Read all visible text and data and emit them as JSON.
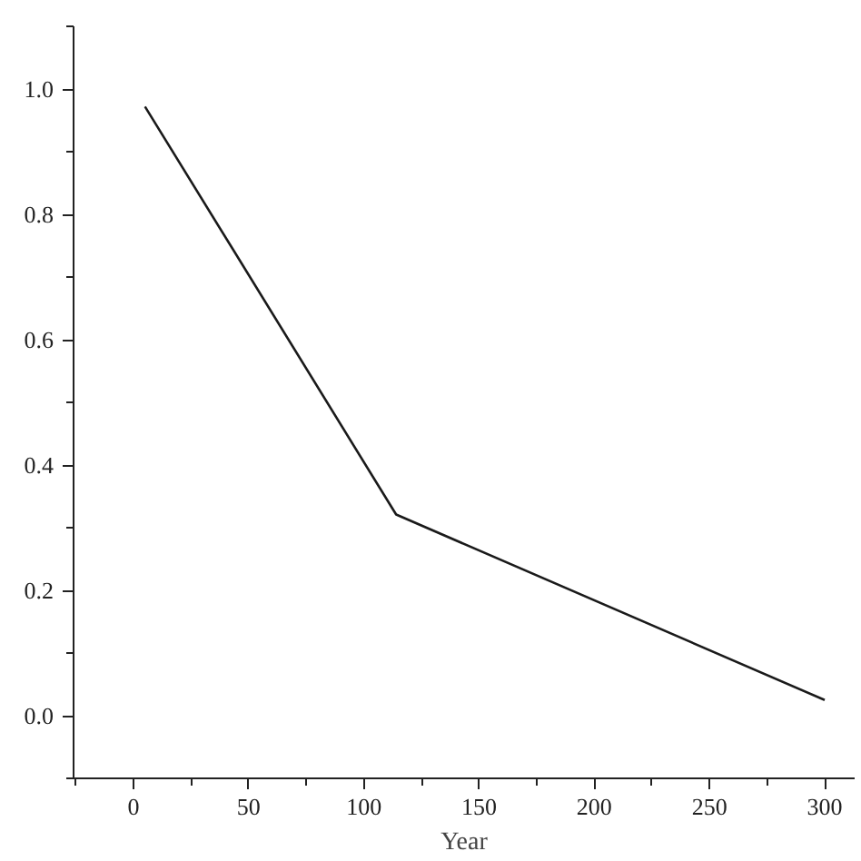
{
  "chart_data": {
    "type": "line",
    "xlabel": "Year",
    "x": [
      5,
      114,
      300
    ],
    "series": [
      {
        "color": "#1a1a1a",
        "values": [
          0.972,
          0.321,
          0.025
        ]
      }
    ],
    "xlim": [
      -26,
      313
    ],
    "ylim": [
      -0.1,
      1.1
    ],
    "xticks": [
      0,
      50,
      100,
      150,
      200,
      250,
      300
    ],
    "yticks": [
      {
        "value": 0,
        "label": "0.0"
      },
      {
        "value": 0.2,
        "label": "0.2"
      },
      {
        "value": 0.4,
        "label": "0.4"
      },
      {
        "value": 0.6,
        "label": "0.6"
      },
      {
        "value": 0.8,
        "label": "0.8"
      },
      {
        "value": 1.0,
        "label": "1.0"
      }
    ],
    "grid": false,
    "marker": "none",
    "line_style": "solid"
  }
}
